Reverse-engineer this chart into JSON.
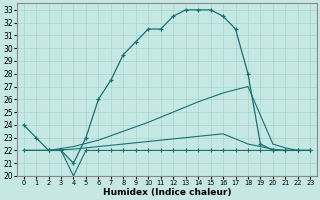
{
  "xlabel": "Humidex (Indice chaleur)",
  "bg_color": "#c5e8e5",
  "line_color": "#1a7070",
  "grid_color": "#a8d4d0",
  "xlim": [
    -0.5,
    23.5
  ],
  "ylim": [
    20,
    33.5
  ],
  "xticks": [
    0,
    1,
    2,
    3,
    4,
    5,
    6,
    7,
    8,
    9,
    10,
    11,
    12,
    13,
    14,
    15,
    16,
    17,
    18,
    19,
    20,
    21,
    22,
    23
  ],
  "yticks": [
    20,
    21,
    22,
    23,
    24,
    25,
    26,
    27,
    28,
    29,
    30,
    31,
    32,
    33
  ],
  "line1_x": [
    0,
    1,
    2,
    3,
    4,
    5,
    6,
    7,
    8,
    9,
    10,
    11,
    12,
    13,
    14,
    15,
    16,
    17,
    18,
    19,
    20,
    21,
    22,
    23
  ],
  "line1_y": [
    24,
    23,
    22,
    22,
    21,
    23,
    26,
    27.5,
    29.5,
    30.5,
    31.5,
    31.5,
    32.5,
    33,
    33,
    33,
    32.5,
    31.5,
    28,
    22.5,
    22,
    22,
    22,
    22
  ],
  "line2_x": [
    0,
    2,
    3,
    4,
    5,
    6,
    7,
    8,
    9,
    10,
    11,
    12,
    13,
    14,
    15,
    16,
    17,
    18,
    19,
    20,
    21,
    22,
    23
  ],
  "line2_y": [
    22,
    22,
    22,
    20,
    22,
    22,
    22,
    22,
    22,
    22,
    22,
    22,
    22,
    22,
    22,
    22,
    22,
    22,
    22,
    22,
    22,
    22,
    22
  ],
  "line3_x": [
    0,
    2,
    4,
    6,
    8,
    10,
    12,
    14,
    16,
    18,
    20,
    21,
    22,
    23
  ],
  "line3_y": [
    22,
    22,
    22.3,
    22.8,
    23.5,
    24.2,
    25.0,
    25.8,
    26.5,
    27.0,
    22.5,
    22.2,
    22,
    22
  ],
  "line4_x": [
    0,
    2,
    4,
    6,
    8,
    10,
    12,
    14,
    16,
    18,
    20,
    21,
    22,
    23
  ],
  "line4_y": [
    22,
    22,
    22.1,
    22.3,
    22.5,
    22.7,
    22.9,
    23.1,
    23.3,
    22.5,
    22.1,
    22,
    22,
    22
  ]
}
